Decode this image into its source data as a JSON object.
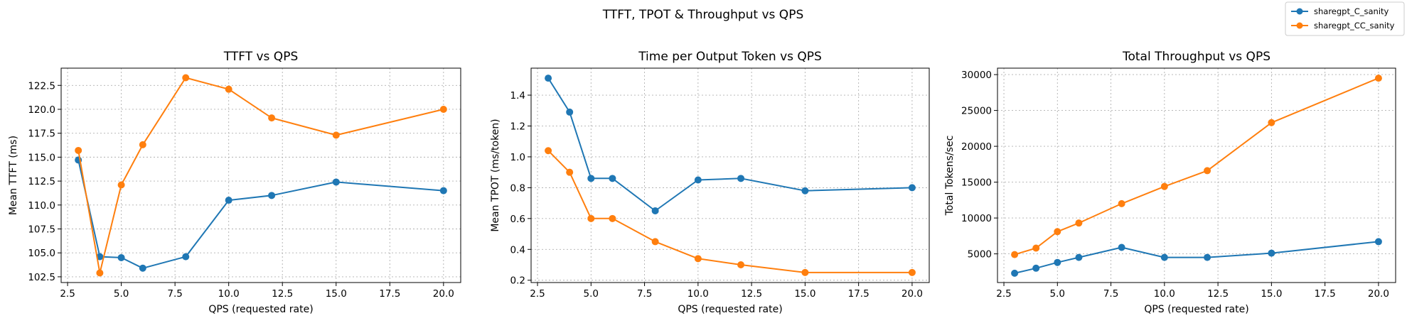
{
  "figure": {
    "suptitle": "TTFT, TPOT & Throughput vs QPS"
  },
  "legend": {
    "placement": "top-right",
    "entries": [
      {
        "label": "sharegpt_C_sanity",
        "color": "#1f77b4"
      },
      {
        "label": "sharegpt_CC_sanity",
        "color": "#ff7f0e"
      }
    ]
  },
  "chart_data": [
    {
      "type": "line",
      "title": "TTFT vs QPS",
      "xlabel": "QPS (requested rate)",
      "ylabel": "Mean TTFT (ms)",
      "xlim": [
        2.2,
        20.8
      ],
      "ylim": [
        101.9,
        124.3
      ],
      "xticks": [
        2.5,
        5.0,
        7.5,
        10.0,
        12.5,
        15.0,
        17.5,
        20.0
      ],
      "xtick_labels": [
        "2.5",
        "5.0",
        "7.5",
        "10.0",
        "12.5",
        "15.0",
        "17.5",
        "20.0"
      ],
      "yticks": [
        102.5,
        105.0,
        107.5,
        110.0,
        112.5,
        115.0,
        117.5,
        120.0,
        122.5
      ],
      "ytick_labels": [
        "102.5",
        "105.0",
        "107.5",
        "110.0",
        "112.5",
        "115.0",
        "117.5",
        "120.0",
        "122.5"
      ],
      "grid": true,
      "series": [
        {
          "name": "sharegpt_C_sanity",
          "color": "#1f77b4",
          "x": [
            3,
            4,
            5,
            6,
            8,
            10,
            12,
            15,
            20
          ],
          "y": [
            114.7,
            104.6,
            104.5,
            103.4,
            104.6,
            110.5,
            111.0,
            112.4,
            111.5
          ]
        },
        {
          "name": "sharegpt_CC_sanity",
          "color": "#ff7f0e",
          "x": [
            3,
            4,
            5,
            6,
            8,
            10,
            12,
            15,
            20
          ],
          "y": [
            115.7,
            102.9,
            112.1,
            116.3,
            123.3,
            122.1,
            119.1,
            117.3,
            120.0
          ]
        }
      ]
    },
    {
      "type": "line",
      "title": "Time per Output Token vs QPS",
      "xlabel": "QPS (requested rate)",
      "ylabel": "Mean TPOT (ms/token)",
      "xlim": [
        2.2,
        20.8
      ],
      "ylim": [
        0.185,
        1.575
      ],
      "xticks": [
        2.5,
        5.0,
        7.5,
        10.0,
        12.5,
        15.0,
        17.5,
        20.0
      ],
      "xtick_labels": [
        "2.5",
        "5.0",
        "7.5",
        "10.0",
        "12.5",
        "15.0",
        "17.5",
        "20.0"
      ],
      "yticks": [
        0.2,
        0.4,
        0.6,
        0.8,
        1.0,
        1.2,
        1.4
      ],
      "ytick_labels": [
        "0.2",
        "0.4",
        "0.6",
        "0.8",
        "1.0",
        "1.2",
        "1.4"
      ],
      "grid": true,
      "series": [
        {
          "name": "sharegpt_C_sanity",
          "color": "#1f77b4",
          "x": [
            3,
            4,
            5,
            6,
            8,
            10,
            12,
            15,
            20
          ],
          "y": [
            1.51,
            1.29,
            0.86,
            0.86,
            0.65,
            0.85,
            0.86,
            0.78,
            0.8
          ]
        },
        {
          "name": "sharegpt_CC_sanity",
          "color": "#ff7f0e",
          "x": [
            3,
            4,
            5,
            6,
            8,
            10,
            12,
            15,
            20
          ],
          "y": [
            1.04,
            0.9,
            0.6,
            0.6,
            0.45,
            0.34,
            0.3,
            0.25,
            0.25
          ]
        }
      ]
    },
    {
      "type": "line",
      "title": "Total Throughput vs QPS",
      "xlabel": "QPS (requested rate)",
      "ylabel": "Total Tokens/sec",
      "xlim": [
        2.2,
        20.8
      ],
      "ylim": [
        1000,
        30900
      ],
      "xticks": [
        2.5,
        5.0,
        7.5,
        10.0,
        12.5,
        15.0,
        17.5,
        20.0
      ],
      "xtick_labels": [
        "2.5",
        "5.0",
        "7.5",
        "10.0",
        "12.5",
        "15.0",
        "17.5",
        "20.0"
      ],
      "yticks": [
        5000,
        10000,
        15000,
        20000,
        25000,
        30000
      ],
      "ytick_labels": [
        "5000",
        "10000",
        "15000",
        "20000",
        "25000",
        "30000"
      ],
      "grid": true,
      "series": [
        {
          "name": "sharegpt_C_sanity",
          "color": "#1f77b4",
          "x": [
            3,
            4,
            5,
            6,
            8,
            10,
            12,
            15,
            20
          ],
          "y": [
            2300,
            3000,
            3800,
            4500,
            5900,
            4500,
            4500,
            5100,
            6700
          ]
        },
        {
          "name": "sharegpt_CC_sanity",
          "color": "#ff7f0e",
          "x": [
            3,
            4,
            5,
            6,
            8,
            10,
            12,
            15,
            20
          ],
          "y": [
            4900,
            5800,
            8100,
            9300,
            12000,
            14400,
            16600,
            23300,
            29500
          ]
        }
      ]
    }
  ]
}
